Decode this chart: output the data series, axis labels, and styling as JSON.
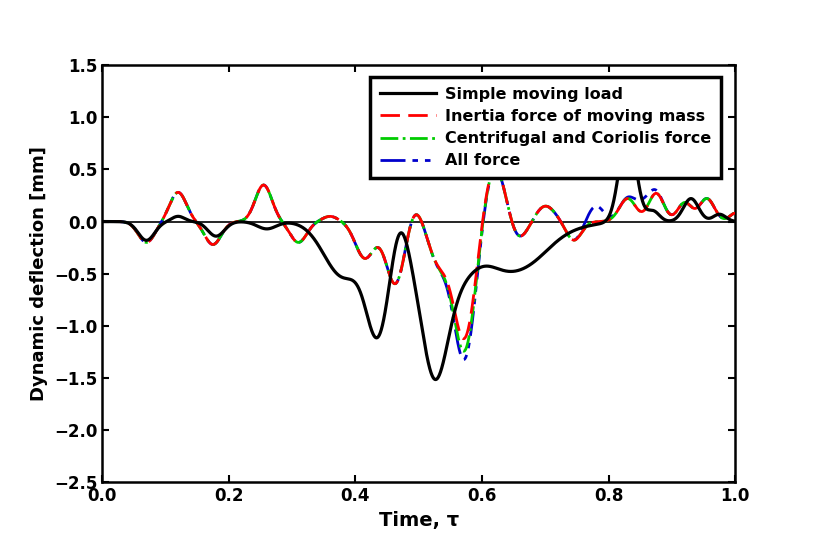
{
  "title": "",
  "xlabel": "Time, τ",
  "ylabel": "Dynamic deflection [mm]",
  "xlim": [
    0.0,
    1.0
  ],
  "ylim": [
    -2.5,
    1.5
  ],
  "yticks": [
    -2.5,
    -2.0,
    -1.5,
    -1.0,
    -0.5,
    0.0,
    0.5,
    1.0,
    1.5
  ],
  "xticks": [
    0.0,
    0.2,
    0.4,
    0.6,
    0.8,
    1.0
  ],
  "legend_labels": [
    "Simple moving load",
    "Inertia force of moving mass",
    "Centrifugal and Coriolis force",
    "All force"
  ],
  "line_colors": [
    "#000000",
    "#ff0000",
    "#00cc00",
    "#0000cc"
  ],
  "background_color": "#ffffff",
  "figsize": [
    8.17,
    5.42
  ],
  "dpi": 100
}
